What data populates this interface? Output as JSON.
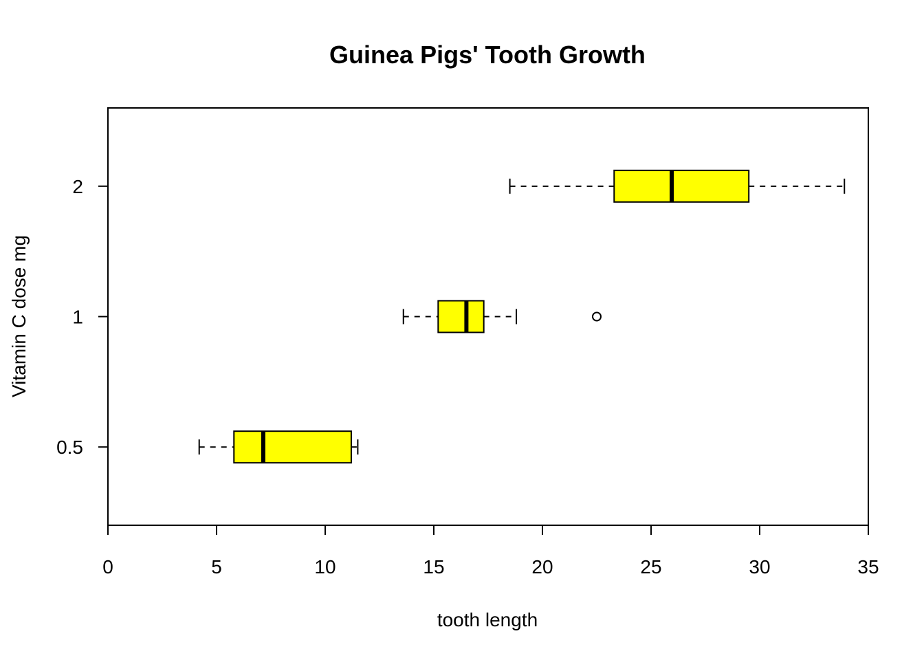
{
  "chart_data": {
    "type": "boxplot",
    "orientation": "horizontal",
    "title": "Guinea Pigs' Tooth Growth",
    "xlabel": "tooth length",
    "ylabel": "Vitamin C dose mg",
    "xlim": [
      0,
      35
    ],
    "x_ticks": [
      "0",
      "5",
      "10",
      "15",
      "20",
      "25",
      "30",
      "35"
    ],
    "categories": [
      "0.5",
      "1",
      "2"
    ],
    "box_color": "#ffff00",
    "grid": false,
    "legend": "none",
    "boxes": [
      {
        "category": "0.5",
        "whisker_low": 4.2,
        "q1": 5.8,
        "median": 7.15,
        "q3": 11.2,
        "whisker_high": 11.5,
        "outliers": []
      },
      {
        "category": "1",
        "whisker_low": 13.6,
        "q1": 15.2,
        "median": 16.5,
        "q3": 17.3,
        "whisker_high": 18.8,
        "outliers": [
          22.5
        ]
      },
      {
        "category": "2",
        "whisker_low": 18.5,
        "q1": 23.3,
        "median": 25.95,
        "q3": 29.5,
        "whisker_high": 33.9,
        "outliers": []
      }
    ]
  }
}
